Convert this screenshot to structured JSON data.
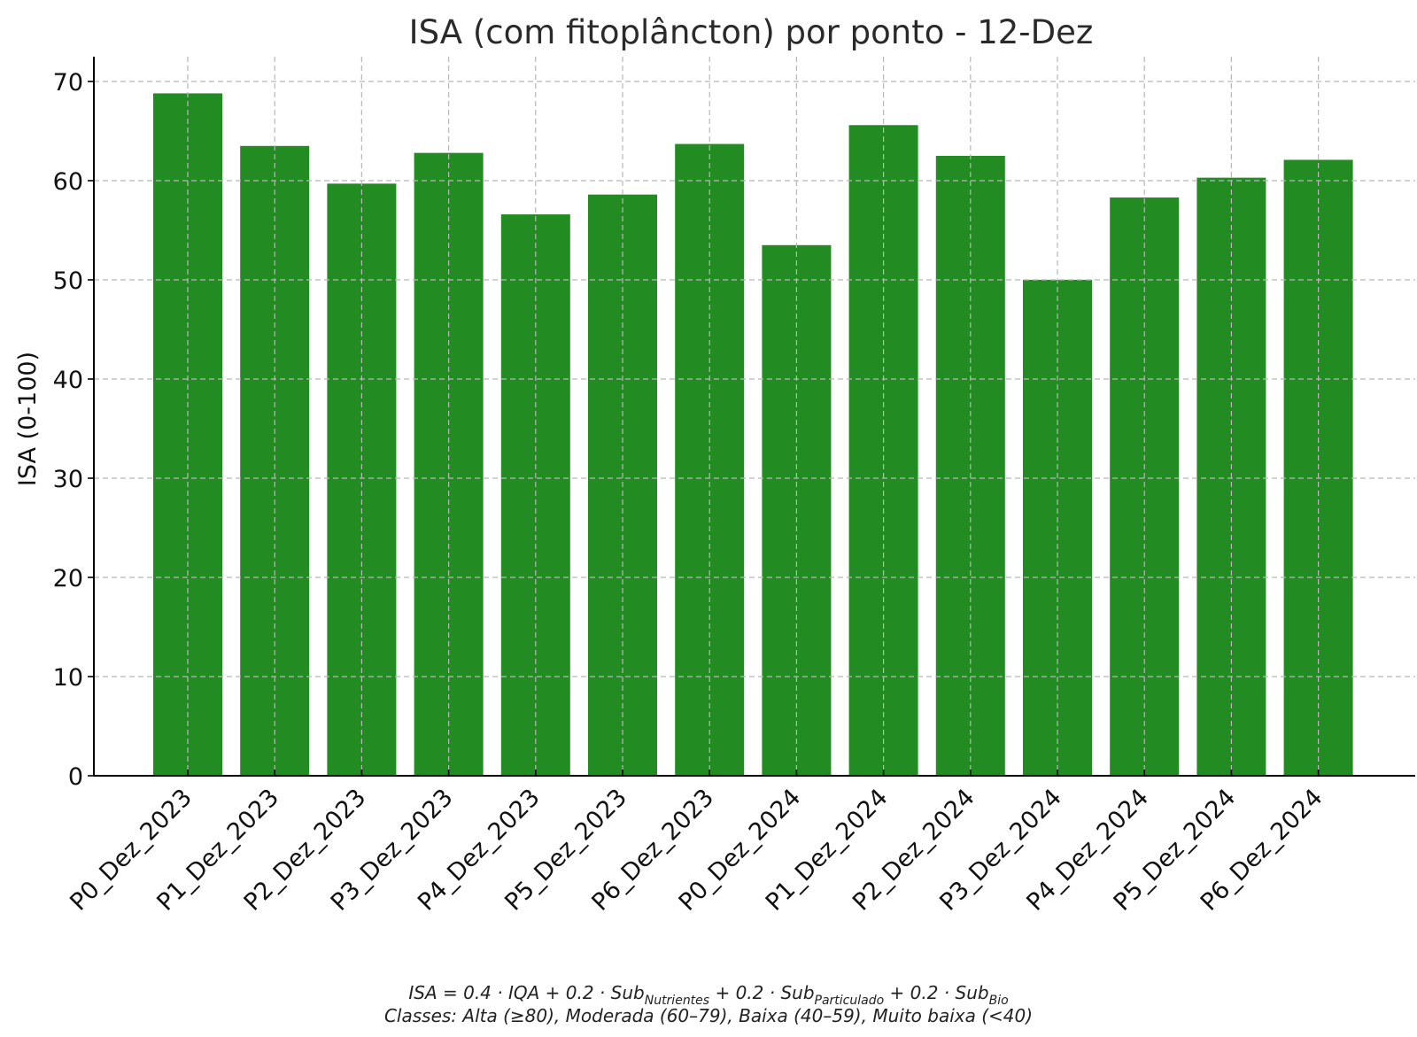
{
  "chart_data": {
    "type": "bar",
    "title": "ISA (com fitoplâncton) por ponto - 12-Dez",
    "xlabel": "",
    "ylabel": "ISA (0-100)",
    "ylim": [
      0,
      72.5
    ],
    "yticks": [
      0,
      10,
      20,
      30,
      40,
      50,
      60,
      70
    ],
    "grid": true,
    "legend": "none",
    "bar_color": "#228B22",
    "categories": [
      "P0_Dez_2023",
      "P1_Dez_2023",
      "P2_Dez_2023",
      "P3_Dez_2023",
      "P4_Dez_2023",
      "P5_Dez_2023",
      "P6_Dez_2023",
      "P0_Dez_2024",
      "P1_Dez_2024",
      "P2_Dez_2024",
      "P3_Dez_2024",
      "P4_Dez_2024",
      "P5_Dez_2024",
      "P6_Dez_2024"
    ],
    "values": [
      68.8,
      63.5,
      59.7,
      62.8,
      56.6,
      58.6,
      63.7,
      53.5,
      65.6,
      62.5,
      50.0,
      58.3,
      60.3,
      62.1
    ]
  },
  "footnote": {
    "formula": {
      "lhs": "ISA = 0.4 · IQA + 0.2 · Sub",
      "sub1": "Nutrientes",
      "mid1": " + 0.2 · Sub",
      "sub2": "Particulado",
      "mid2": " + 0.2 · Sub",
      "sub3": "Bio"
    },
    "classes": "Classes: Alta (≥80), Moderada (60–79), Baixa (40–59), Muito baixa (<40)"
  }
}
